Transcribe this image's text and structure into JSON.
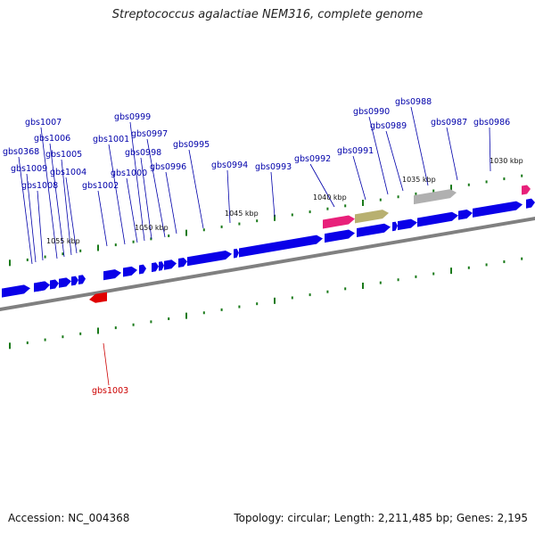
{
  "title": "Streptococcus agalactiae NEM316, complete genome",
  "footer": {
    "accession": "Accession: NC_004368",
    "summary": "Topology: circular; Length: 2,211,485 bp; Genes: 2,195"
  },
  "colors": {
    "forward_gene": "#0a00e8",
    "reverse_gene": "#e00000",
    "rrna": "#e8207a",
    "trna": "#b8b070",
    "misc": "#b0b0b0",
    "backbone": "#808080",
    "tick": "#1a7a1a",
    "label_forward": "#0000aa",
    "label_reverse": "#cc0000"
  },
  "kbp_labels": [
    "1030 kbp",
    "1035 kbp",
    "1040 kbp",
    "1045 kbp",
    "1050 kbp",
    "1055 kbp"
  ],
  "gene_labels_forward": [
    "gbs0986",
    "gbs0987",
    "gbs0988",
    "gbs0989",
    "gbs0990",
    "gbs0991",
    "gbs0992",
    "gbs0993",
    "gbs0994",
    "gbs0995",
    "gbs0996",
    "gbs0997",
    "gbs0998",
    "gbs0999",
    "gbs1000",
    "gbs1001",
    "gbs1002",
    "gbs1004",
    "gbs1005",
    "gbs1006",
    "gbs1007",
    "gbs1008",
    "gbs1009",
    "gbs0368"
  ],
  "gene_labels_reverse": [
    "gbs1003"
  ]
}
